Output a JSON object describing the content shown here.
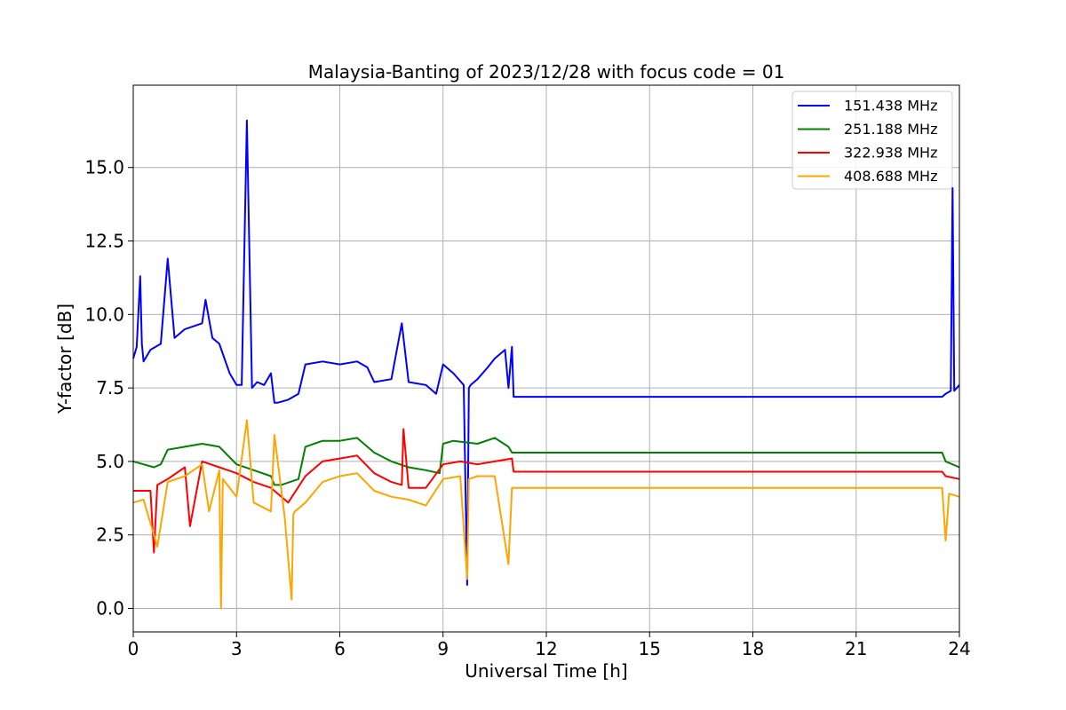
{
  "chart_data": {
    "type": "line",
    "title": "Malaysia-Banting of 2023/12/28 with focus code = 01",
    "xlabel": "Universal Time [h]",
    "ylabel": "Y-factor [dB]",
    "xlim": [
      0,
      24
    ],
    "ylim": [
      -0.8,
      17.8
    ],
    "xticks": [
      0,
      3,
      6,
      9,
      12,
      15,
      18,
      21,
      24
    ],
    "xtick_labels": [
      "0",
      "3",
      "6",
      "9",
      "12",
      "15",
      "18",
      "21",
      "24"
    ],
    "yticks": [
      0.0,
      2.5,
      5.0,
      7.5,
      10.0,
      12.5,
      15.0
    ],
    "ytick_labels": [
      "0.0",
      "2.5",
      "5.0",
      "7.5",
      "10.0",
      "12.5",
      "15.0"
    ],
    "grid": true,
    "legend_position": "top-right",
    "series": [
      {
        "name": "151.438 MHz",
        "color": "#0000ff",
        "x": [
          0,
          0.1,
          0.2,
          0.25,
          0.3,
          0.5,
          0.8,
          1.0,
          1.2,
          1.5,
          2.0,
          2.1,
          2.3,
          2.5,
          2.8,
          3.0,
          3.15,
          3.3,
          3.45,
          3.6,
          3.8,
          4.0,
          4.1,
          4.2,
          4.5,
          4.8,
          5.0,
          5.5,
          6.0,
          6.5,
          6.8,
          7.0,
          7.5,
          7.8,
          8.0,
          8.5,
          8.8,
          9.0,
          9.3,
          9.6,
          9.7,
          9.75,
          9.8,
          10.0,
          10.3,
          10.5,
          10.8,
          10.9,
          11.0,
          11.05,
          23.5,
          23.6,
          23.75,
          23.8,
          23.85,
          24.0
        ],
        "y": [
          8.5,
          8.9,
          11.3,
          9.0,
          8.4,
          8.8,
          9.0,
          11.9,
          9.2,
          9.5,
          9.7,
          10.5,
          9.2,
          9.0,
          8.0,
          7.6,
          7.6,
          16.6,
          7.5,
          7.7,
          7.6,
          8.0,
          7.0,
          7.0,
          7.1,
          7.3,
          8.3,
          8.4,
          8.3,
          8.4,
          8.2,
          7.7,
          7.8,
          9.7,
          7.7,
          7.6,
          7.3,
          8.3,
          8.0,
          7.6,
          0.8,
          7.5,
          7.6,
          7.8,
          8.2,
          8.5,
          8.8,
          7.5,
          8.9,
          7.2,
          7.2,
          7.3,
          7.4,
          14.3,
          7.4,
          7.6
        ]
      },
      {
        "name": "251.188 MHz",
        "color": "#008000",
        "x": [
          0,
          0.3,
          0.6,
          0.8,
          1.0,
          1.5,
          2.0,
          2.5,
          3.0,
          3.5,
          4.0,
          4.1,
          4.3,
          4.8,
          5.0,
          5.5,
          6.0,
          6.5,
          7.0,
          7.5,
          8.0,
          8.5,
          8.9,
          9.0,
          9.3,
          10.0,
          10.5,
          10.9,
          11.0,
          23.5,
          23.6,
          24.0
        ],
        "y": [
          5.0,
          4.9,
          4.8,
          4.9,
          5.4,
          5.5,
          5.6,
          5.5,
          4.9,
          4.7,
          4.5,
          4.2,
          4.2,
          4.4,
          5.5,
          5.7,
          5.7,
          5.8,
          5.3,
          5.0,
          4.8,
          4.7,
          4.6,
          5.6,
          5.7,
          5.6,
          5.8,
          5.5,
          5.3,
          5.3,
          5.0,
          4.8
        ]
      },
      {
        "name": "322.938 MHz",
        "color": "#ff0000",
        "x": [
          0,
          0.5,
          0.6,
          0.7,
          1.0,
          1.5,
          1.65,
          2.0,
          2.5,
          3.0,
          3.5,
          4.0,
          4.5,
          5.0,
          5.5,
          6.0,
          6.5,
          7.0,
          7.5,
          7.8,
          7.85,
          8.0,
          8.5,
          9.0,
          9.5,
          10.0,
          10.5,
          11.0,
          11.05,
          23.5,
          23.6,
          24.0
        ],
        "y": [
          4.0,
          4.0,
          1.9,
          4.2,
          4.4,
          4.8,
          2.8,
          5.0,
          4.8,
          4.6,
          4.3,
          4.1,
          3.6,
          4.5,
          5.0,
          5.1,
          5.2,
          4.6,
          4.3,
          4.2,
          6.1,
          4.1,
          4.1,
          4.9,
          5.0,
          4.9,
          5.0,
          5.1,
          4.65,
          4.65,
          4.5,
          4.4
        ]
      },
      {
        "name": "408.688 MHz",
        "color": "#ffa500",
        "x": [
          0,
          0.3,
          0.7,
          1.0,
          1.5,
          2.0,
          2.2,
          2.5,
          2.55,
          2.6,
          3.0,
          3.3,
          3.5,
          4.0,
          4.1,
          4.4,
          4.6,
          4.65,
          4.7,
          5.0,
          5.5,
          6.0,
          6.5,
          7.0,
          7.5,
          8.0,
          8.5,
          9.0,
          9.5,
          9.7,
          9.75,
          10.0,
          10.5,
          10.9,
          11.0,
          11.05,
          23.5,
          23.6,
          23.7,
          24.0
        ],
        "y": [
          3.6,
          3.7,
          2.1,
          4.3,
          4.5,
          4.9,
          3.3,
          4.7,
          0.0,
          4.4,
          3.8,
          6.4,
          3.6,
          3.3,
          5.9,
          3.1,
          0.3,
          3.2,
          3.3,
          3.6,
          4.3,
          4.5,
          4.6,
          4.0,
          3.8,
          3.7,
          3.5,
          4.4,
          4.5,
          1.0,
          4.4,
          4.5,
          4.5,
          1.5,
          4.1,
          4.1,
          4.1,
          2.3,
          3.9,
          3.8
        ]
      }
    ]
  }
}
